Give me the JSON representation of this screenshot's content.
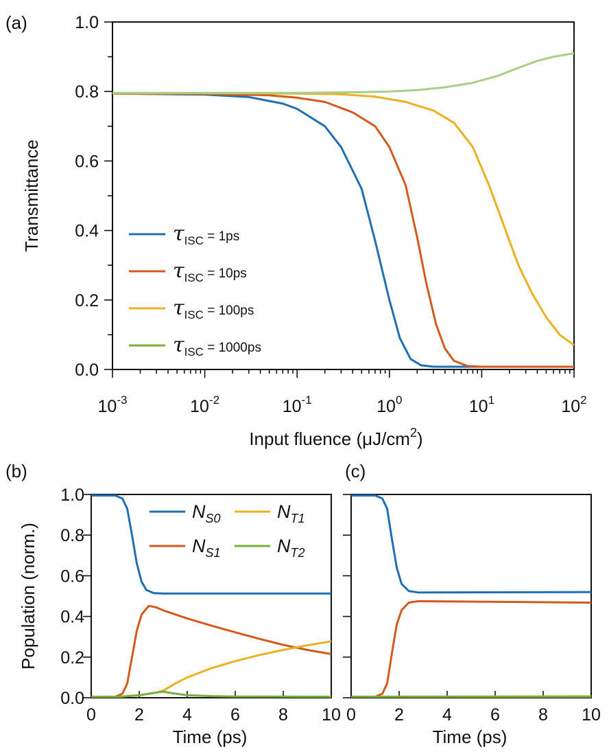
{
  "colors": {
    "blue": "#1f6fb4",
    "red": "#d35a1f",
    "yellow": "#ecb024",
    "green": "#7aaf3c",
    "green_light": "#a9cf86"
  },
  "chart_data": [
    {
      "panel_label": "(a)",
      "type": "line",
      "xlabel_main": "Input fluence (μJ/cm",
      "xlabel_sup": "2",
      "xlabel_close": ")",
      "ylabel": "Transmittance",
      "xscale": "log",
      "xlim": [
        0.001,
        100
      ],
      "ylim": [
        0,
        1.0
      ],
      "yticks": [
        "0.0",
        "0.2",
        "0.4",
        "0.6",
        "0.8",
        "1.0"
      ],
      "xticks": [
        {
          "value": 0.001,
          "base": "10",
          "exp": "-3"
        },
        {
          "value": 0.01,
          "base": "10",
          "exp": "-2"
        },
        {
          "value": 0.1,
          "base": "10",
          "exp": "-1"
        },
        {
          "value": 1,
          "base": "10",
          "exp": "0"
        },
        {
          "value": 10,
          "base": "10",
          "exp": "1"
        },
        {
          "value": 100,
          "base": "10",
          "exp": "2"
        }
      ],
      "legend_position": "lower-left",
      "series": [
        {
          "name_symbol": "τ",
          "name_sub": "ISC",
          "name_rest": " = 1ps",
          "color": "#1f6fb4",
          "points": [
            [
              0.001,
              0.794
            ],
            [
              0.01,
              0.791
            ],
            [
              0.03,
              0.784
            ],
            [
              0.07,
              0.765
            ],
            [
              0.1,
              0.75
            ],
            [
              0.2,
              0.7
            ],
            [
              0.3,
              0.64
            ],
            [
              0.5,
              0.52
            ],
            [
              0.7,
              0.37
            ],
            [
              1.0,
              0.2
            ],
            [
              1.3,
              0.09
            ],
            [
              1.7,
              0.03
            ],
            [
              2.2,
              0.012
            ],
            [
              3,
              0.008
            ],
            [
              10,
              0.008
            ],
            [
              100,
              0.008
            ]
          ]
        },
        {
          "name_symbol": "τ",
          "name_sub": "ISC",
          "name_rest": " = 10ps",
          "color": "#d35a1f",
          "points": [
            [
              0.001,
              0.794
            ],
            [
              0.01,
              0.793
            ],
            [
              0.05,
              0.789
            ],
            [
              0.1,
              0.782
            ],
            [
              0.2,
              0.77
            ],
            [
              0.4,
              0.74
            ],
            [
              0.7,
              0.7
            ],
            [
              1.0,
              0.64
            ],
            [
              1.5,
              0.53
            ],
            [
              2.0,
              0.38
            ],
            [
              2.5,
              0.25
            ],
            [
              3.2,
              0.13
            ],
            [
              4,
              0.06
            ],
            [
              5,
              0.025
            ],
            [
              7,
              0.01
            ],
            [
              10,
              0.008
            ],
            [
              100,
              0.008
            ]
          ]
        },
        {
          "name_symbol": "τ",
          "name_sub": "ISC",
          "name_rest": " = 100ps",
          "color": "#ecb024",
          "points": [
            [
              0.001,
              0.795
            ],
            [
              0.01,
              0.795
            ],
            [
              0.1,
              0.794
            ],
            [
              0.3,
              0.792
            ],
            [
              0.7,
              0.785
            ],
            [
              1.5,
              0.77
            ],
            [
              3,
              0.745
            ],
            [
              5,
              0.71
            ],
            [
              8,
              0.64
            ],
            [
              12,
              0.53
            ],
            [
              16,
              0.44
            ],
            [
              20,
              0.37
            ],
            [
              25,
              0.3
            ],
            [
              35,
              0.22
            ],
            [
              50,
              0.15
            ],
            [
              70,
              0.1
            ],
            [
              100,
              0.07
            ]
          ]
        },
        {
          "name_symbol": "τ",
          "name_sub": "ISC",
          "name_rest": " = 1000ps",
          "color": "#7aaf3c",
          "line_color": "#a9cf86",
          "points": [
            [
              0.001,
              0.796
            ],
            [
              0.01,
              0.796
            ],
            [
              0.1,
              0.796
            ],
            [
              0.5,
              0.798
            ],
            [
              1,
              0.8
            ],
            [
              2,
              0.804
            ],
            [
              4,
              0.812
            ],
            [
              8,
              0.825
            ],
            [
              15,
              0.845
            ],
            [
              25,
              0.868
            ],
            [
              40,
              0.888
            ],
            [
              60,
              0.9
            ],
            [
              100,
              0.91
            ]
          ]
        }
      ]
    },
    {
      "panel_label": "(b)",
      "type": "line",
      "xlabel": "Time (ps)",
      "ylabel": "Population (norm.)",
      "xlim": [
        0,
        10
      ],
      "ylim": [
        0,
        1.0
      ],
      "xticks": [
        "0",
        "2",
        "4",
        "6",
        "8",
        "10"
      ],
      "yticks": [
        "0.0",
        "0.2",
        "0.4",
        "0.6",
        "0.8",
        "1.0"
      ],
      "legend_position": "top-right",
      "series": [
        {
          "sym": "N",
          "sub": "S0",
          "color": "#1f6fb4",
          "points": [
            [
              0,
              0.995
            ],
            [
              1.0,
              0.995
            ],
            [
              1.3,
              0.98
            ],
            [
              1.5,
              0.93
            ],
            [
              1.7,
              0.8
            ],
            [
              1.9,
              0.66
            ],
            [
              2.1,
              0.57
            ],
            [
              2.3,
              0.53
            ],
            [
              2.6,
              0.515
            ],
            [
              3,
              0.513
            ],
            [
              10,
              0.513
            ]
          ]
        },
        {
          "sym": "N",
          "sub": "S1",
          "color": "#d35a1f",
          "points": [
            [
              0,
              0.005
            ],
            [
              1.0,
              0.005
            ],
            [
              1.3,
              0.02
            ],
            [
              1.5,
              0.07
            ],
            [
              1.7,
              0.2
            ],
            [
              1.9,
              0.33
            ],
            [
              2.1,
              0.41
            ],
            [
              2.4,
              0.452
            ],
            [
              2.7,
              0.445
            ],
            [
              3,
              0.43
            ],
            [
              4,
              0.39
            ],
            [
              5,
              0.355
            ],
            [
              6,
              0.322
            ],
            [
              7,
              0.29
            ],
            [
              8,
              0.26
            ],
            [
              9,
              0.235
            ],
            [
              10,
              0.215
            ]
          ]
        },
        {
          "sym": "N",
          "sub": "T1",
          "color": "#ecb024",
          "points": [
            [
              0,
              0.005
            ],
            [
              1.2,
              0.005
            ],
            [
              2,
              0.012
            ],
            [
              2.7,
              0.025
            ],
            [
              3,
              0.035
            ],
            [
              3.5,
              0.07
            ],
            [
              4,
              0.1
            ],
            [
              5,
              0.145
            ],
            [
              6,
              0.18
            ],
            [
              7,
              0.21
            ],
            [
              8,
              0.235
            ],
            [
              9,
              0.258
            ],
            [
              10,
              0.278
            ]
          ]
        },
        {
          "sym": "N",
          "sub": "T2",
          "color": "#7aaf3c",
          "points": [
            [
              0,
              0.005
            ],
            [
              1.2,
              0.005
            ],
            [
              2,
              0.012
            ],
            [
              2.5,
              0.022
            ],
            [
              3,
              0.03
            ],
            [
              3.4,
              0.022
            ],
            [
              4,
              0.013
            ],
            [
              5,
              0.008
            ],
            [
              6,
              0.006
            ],
            [
              10,
              0.005
            ]
          ]
        }
      ]
    },
    {
      "panel_label": "(c)",
      "type": "line",
      "xlabel": "Time (ps)",
      "ylabel": "",
      "xlim": [
        0,
        10
      ],
      "ylim": [
        0,
        1.0
      ],
      "xticks": [
        "0",
        "2",
        "4",
        "6",
        "8",
        "10"
      ],
      "series": [
        {
          "color": "#1f6fb4",
          "points": [
            [
              0,
              0.995
            ],
            [
              1.0,
              0.995
            ],
            [
              1.3,
              0.98
            ],
            [
              1.5,
              0.93
            ],
            [
              1.7,
              0.78
            ],
            [
              1.9,
              0.64
            ],
            [
              2.1,
              0.56
            ],
            [
              2.4,
              0.525
            ],
            [
              2.8,
              0.518
            ],
            [
              10,
              0.52
            ]
          ]
        },
        {
          "color": "#d35a1f",
          "points": [
            [
              0,
              0.005
            ],
            [
              1.0,
              0.005
            ],
            [
              1.3,
              0.02
            ],
            [
              1.5,
              0.07
            ],
            [
              1.7,
              0.22
            ],
            [
              1.9,
              0.36
            ],
            [
              2.1,
              0.43
            ],
            [
              2.4,
              0.468
            ],
            [
              2.8,
              0.475
            ],
            [
              10,
              0.468
            ]
          ]
        },
        {
          "color": "#ecb024",
          "points": [
            [
              0,
              0.005
            ],
            [
              10,
              0.007
            ]
          ]
        },
        {
          "color": "#7aaf3c",
          "points": [
            [
              0,
              0.005
            ],
            [
              10,
              0.005
            ]
          ]
        }
      ]
    }
  ]
}
